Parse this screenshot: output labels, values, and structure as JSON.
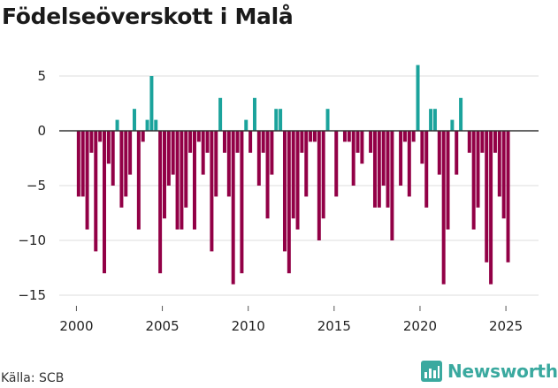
{
  "page": {
    "title": "Födelseöverskott i Malå",
    "source": "Källa: SCB",
    "brand": "Newsworthy"
  },
  "colors": {
    "positive": "#1ba39c",
    "negative": "#920046",
    "grid": "#dcdcdc",
    "zero_line": "#333333",
    "brand": "#3aa99f"
  },
  "chart_data": {
    "type": "bar",
    "title": "Födelseöverskott i Malå",
    "xlabel": "",
    "ylabel": "",
    "ylim": [
      -15,
      6
    ],
    "yticks": [
      5,
      0,
      -5,
      -10,
      -15
    ],
    "ytick_labels": [
      "5",
      "0",
      "−5",
      "−10",
      "−15"
    ],
    "xlim": [
      1999.0,
      2026.9
    ],
    "xticks": [
      2000,
      2005,
      2010,
      2015,
      2020,
      2025
    ],
    "xtick_labels": [
      "2000",
      "2005",
      "2010",
      "2015",
      "2020",
      "2025"
    ],
    "period": "quarterly",
    "start": "2000 Q1",
    "values": [
      -6,
      -6,
      -9,
      -2,
      -11,
      -1,
      -13,
      -3,
      -5,
      1,
      -7,
      -6,
      -4,
      2,
      -9,
      -1,
      1,
      5,
      1,
      -13,
      -8,
      -5,
      -4,
      -9,
      -9,
      -7,
      -2,
      -9,
      -1,
      -4,
      -2,
      -11,
      -6,
      3,
      -2,
      -6,
      -14,
      -2,
      -13,
      1,
      -2,
      3,
      -5,
      -2,
      -8,
      -4,
      2,
      2,
      -11,
      -13,
      -8,
      -9,
      -2,
      -6,
      -1,
      -1,
      -10,
      -8,
      2,
      0,
      -6,
      0,
      -1,
      -1,
      -5,
      -2,
      -3,
      0,
      -2,
      -7,
      -7,
      -5,
      -7,
      -10,
      0,
      -5,
      -1,
      -6,
      -1,
      6,
      -3,
      -7,
      2,
      2,
      -4,
      -14,
      -9,
      1,
      -4,
      3,
      0,
      -2,
      -9,
      -7,
      -2,
      -12,
      -14,
      -2,
      -6,
      -8,
      -12
    ]
  }
}
